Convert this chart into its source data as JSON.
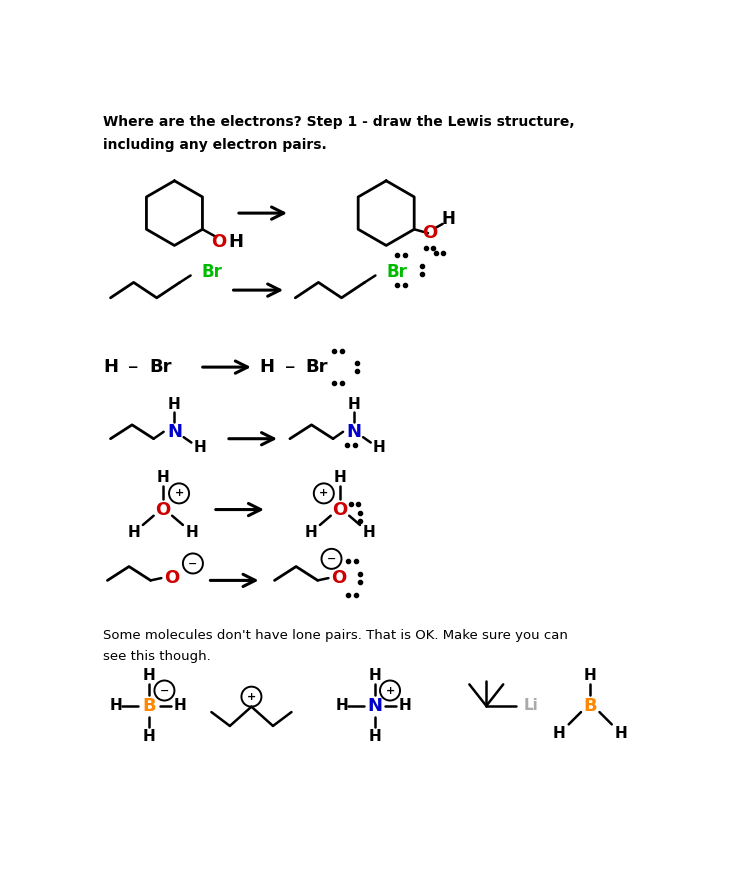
{
  "title_line1": "Where are the electrons? Step 1 - draw the Lewis structure,",
  "title_line2": "including any electron pairs.",
  "footer_line1": "Some molecules don't have lone pairs. That is OK. Make sure you can",
  "footer_line2": "see this though.",
  "bg_color": "#ffffff",
  "text_color": "#000000",
  "red": "#cc0000",
  "green": "#00bb00",
  "blue": "#0000cc",
  "orange": "#ff8800",
  "gray": "#aaaaaa",
  "fig_w": 7.34,
  "fig_h": 8.84,
  "dpi": 100
}
